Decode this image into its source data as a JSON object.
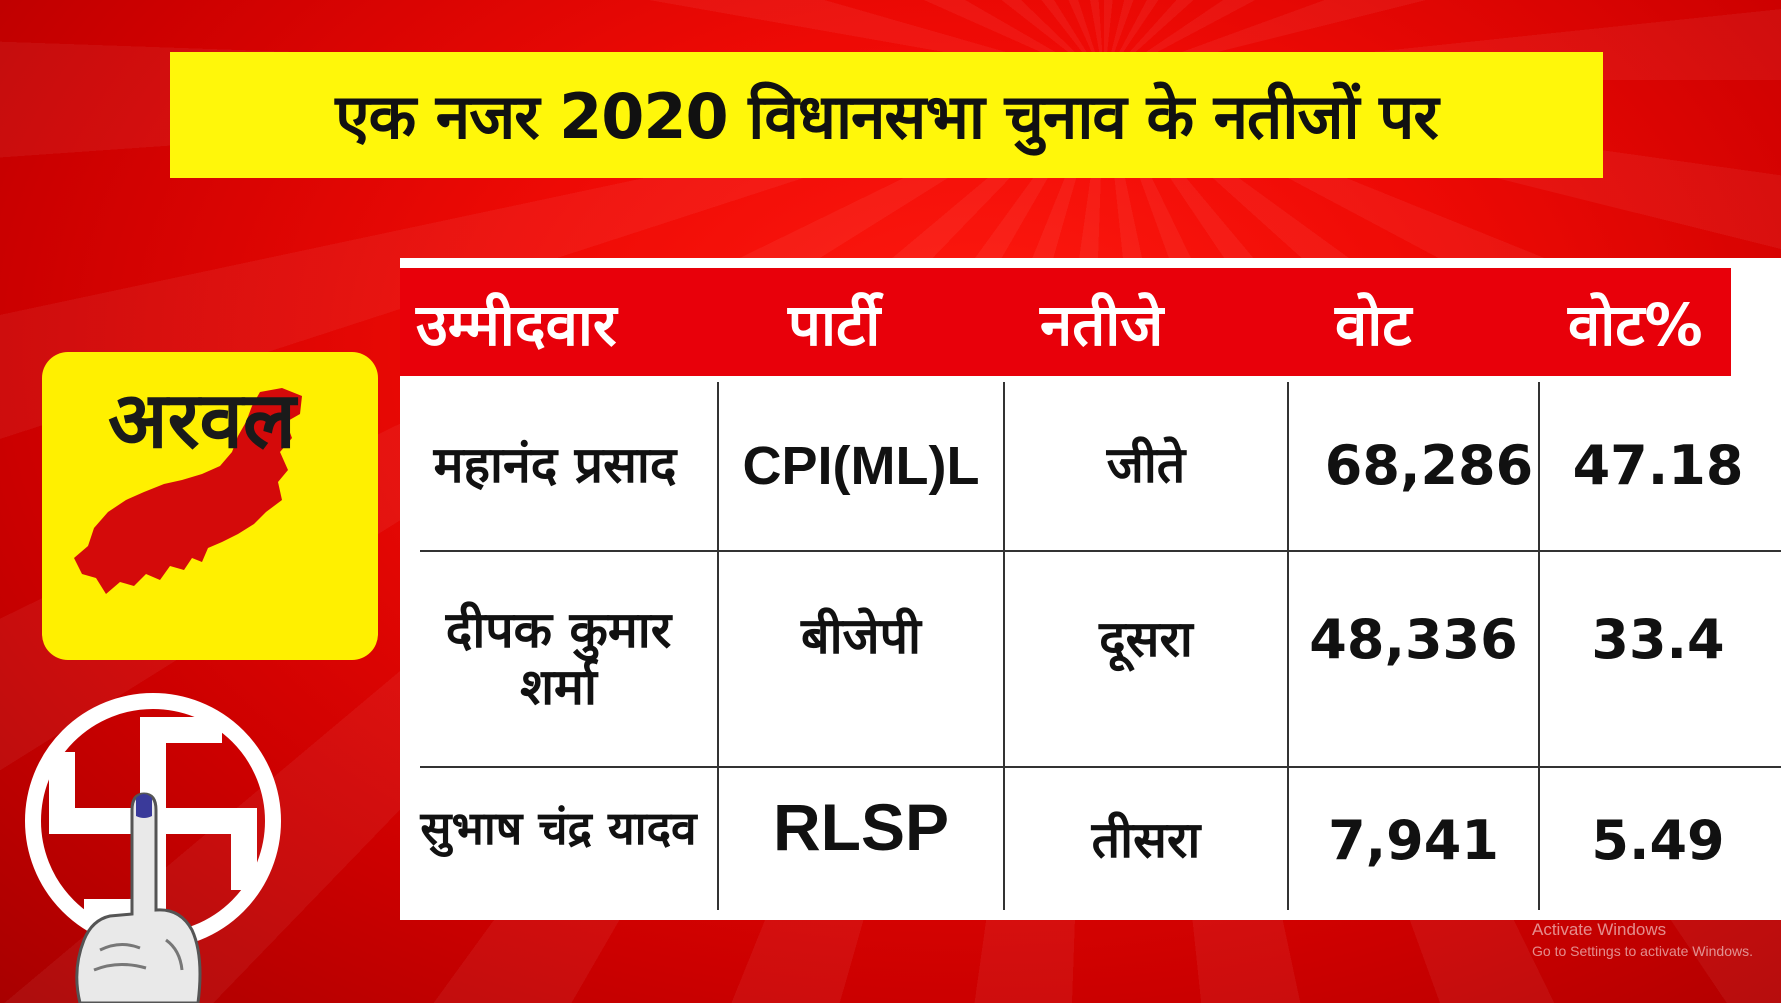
{
  "title": "एक नजर 2020 विधानसभा चुनाव के नतीजों पर",
  "constituency": "अरवल",
  "table": {
    "headers": [
      "उम्मीदवार",
      "पार्टी",
      "नतीजे",
      "वोट",
      "वोट%"
    ],
    "rows": [
      {
        "candidate": "महानंद प्रसाद",
        "party": "CPI(ML)L",
        "result": "जीते",
        "votes": "68,286",
        "vote_pct": "47.18"
      },
      {
        "candidate": "दीपक कुमार शर्मा",
        "party": "बीजेपी",
        "result": "दूसरा",
        "votes": "48,336",
        "vote_pct": "33.4"
      },
      {
        "candidate": "सुभाष चंद्र यादव",
        "party": "RLSP",
        "result": "तीसरा",
        "votes": "7,941",
        "vote_pct": "5.49"
      }
    ]
  },
  "watermark": {
    "line1": "Activate Windows",
    "line2": "Go to Settings to activate Windows."
  },
  "colors": {
    "background": "#e60a05",
    "banner": "#fff70a",
    "header_row": "#e8000a",
    "map_fill": "#d40a0a"
  }
}
